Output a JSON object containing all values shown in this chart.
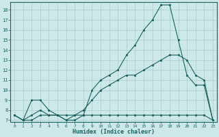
{
  "xlabel": "Humidex (Indice chaleur)",
  "ylabel": "",
  "xlim": [
    -0.5,
    23.5
  ],
  "ylim": [
    6.8,
    18.8
  ],
  "yticks": [
    7,
    8,
    9,
    10,
    11,
    12,
    13,
    14,
    15,
    16,
    17,
    18
  ],
  "xticks": [
    0,
    1,
    2,
    3,
    4,
    5,
    6,
    7,
    8,
    9,
    10,
    11,
    12,
    13,
    14,
    15,
    16,
    17,
    18,
    19,
    20,
    21,
    22,
    23
  ],
  "bg_color": "#cde8e8",
  "grid_color": "#aacaca",
  "line_color": "#1a6060",
  "curve1_x": [
    0,
    1,
    2,
    3,
    4,
    5,
    6,
    7,
    8,
    9,
    10,
    11,
    12,
    13,
    14,
    15,
    16,
    17,
    18,
    19,
    20,
    21,
    22,
    23
  ],
  "curve1_y": [
    7.5,
    7.0,
    7.0,
    7.5,
    7.5,
    7.5,
    7.0,
    7.0,
    7.5,
    7.5,
    7.5,
    7.5,
    7.5,
    7.5,
    7.5,
    7.5,
    7.5,
    7.5,
    7.5,
    7.5,
    7.5,
    7.5,
    7.5,
    7.0
  ],
  "curve2_x": [
    0,
    1,
    2,
    3,
    4,
    5,
    6,
    7,
    8,
    9,
    10,
    11,
    12,
    13,
    14,
    15,
    16,
    17,
    18,
    19,
    20,
    21,
    22,
    23
  ],
  "curve2_y": [
    7.5,
    7.0,
    9.0,
    9.0,
    8.0,
    7.5,
    7.0,
    7.5,
    7.5,
    10.0,
    11.0,
    11.5,
    12.0,
    13.5,
    14.5,
    16.0,
    17.0,
    18.5,
    18.5,
    15.0,
    11.5,
    10.5,
    10.5,
    7.0
  ],
  "curve3_x": [
    0,
    1,
    2,
    3,
    4,
    5,
    6,
    7,
    8,
    9,
    10,
    11,
    12,
    13,
    14,
    15,
    16,
    17,
    18,
    19,
    20,
    21,
    22,
    23
  ],
  "curve3_y": [
    7.5,
    7.0,
    7.5,
    8.0,
    7.5,
    7.5,
    7.5,
    7.5,
    8.0,
    9.0,
    10.0,
    10.5,
    11.0,
    11.5,
    11.5,
    12.0,
    12.5,
    13.0,
    13.5,
    13.5,
    13.0,
    11.5,
    11.0,
    7.0
  ]
}
